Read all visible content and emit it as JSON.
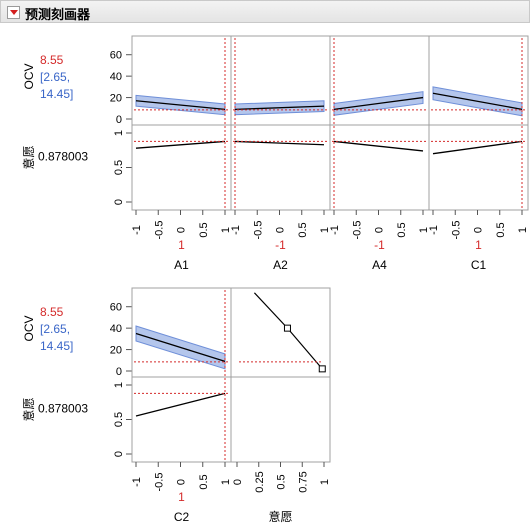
{
  "header": {
    "title": "预测刻画器",
    "disclosure_icon": "red-triangle-menu-icon"
  },
  "colors": {
    "current_value": "#d42a2a",
    "interval": "#3a66c8",
    "band": "#b4c6ec",
    "band_edge": "#6f8fd8",
    "line": "#000000",
    "frame": "#a0a0a0"
  },
  "response": {
    "name": "OCV",
    "value": "8.55",
    "interval_text_1": "[2.65,",
    "interval_text_2": "14.45]",
    "ylim": [
      0,
      70
    ],
    "ticks": [
      "0",
      "20",
      "40",
      "60"
    ],
    "current": 8.55
  },
  "desirability": {
    "name": "意愿",
    "value": "0.878003",
    "ylim": [
      0,
      1
    ],
    "ticks": [
      "0",
      "0.5",
      "1"
    ],
    "current": 0.878003
  },
  "factor_ticks": [
    "-1",
    "-0.5",
    "0",
    "0.5",
    "1"
  ],
  "desirability_ticks": [
    "0",
    "0.25",
    "0.5",
    "0.75",
    "1"
  ],
  "factors": [
    {
      "name": "A1",
      "current_label": "1",
      "current": 1,
      "ocv_start": 17,
      "ocv_end": 9,
      "half_band": 5,
      "des_start": 0.78,
      "des_end": 0.878
    },
    {
      "name": "A2",
      "current_label": "-1",
      "current": -1,
      "ocv_start": 9,
      "ocv_end": 12,
      "half_band": 5,
      "des_start": 0.878,
      "des_end": 0.83
    },
    {
      "name": "A4",
      "current_label": "-1",
      "current": -1,
      "ocv_start": 9,
      "ocv_end": 20,
      "half_band": 5.5,
      "des_start": 0.878,
      "des_end": 0.74
    },
    {
      "name": "C1",
      "current_label": "1",
      "current": 1,
      "ocv_start": 24,
      "ocv_end": 9,
      "half_band": 6,
      "des_start": 0.7,
      "des_end": 0.878
    },
    {
      "name": "C2",
      "current_label": "1",
      "current": 1,
      "ocv_start": 35,
      "ocv_end": 9,
      "half_band": 7,
      "des_start": 0.55,
      "des_end": 0.878
    }
  ],
  "desirability_function": {
    "x_label": "意愿",
    "points": [
      {
        "ocv": 73,
        "des": 0.2
      },
      {
        "ocv": 40,
        "des": 0.58
      },
      {
        "ocv": 2,
        "des": 0.98
      }
    ]
  }
}
